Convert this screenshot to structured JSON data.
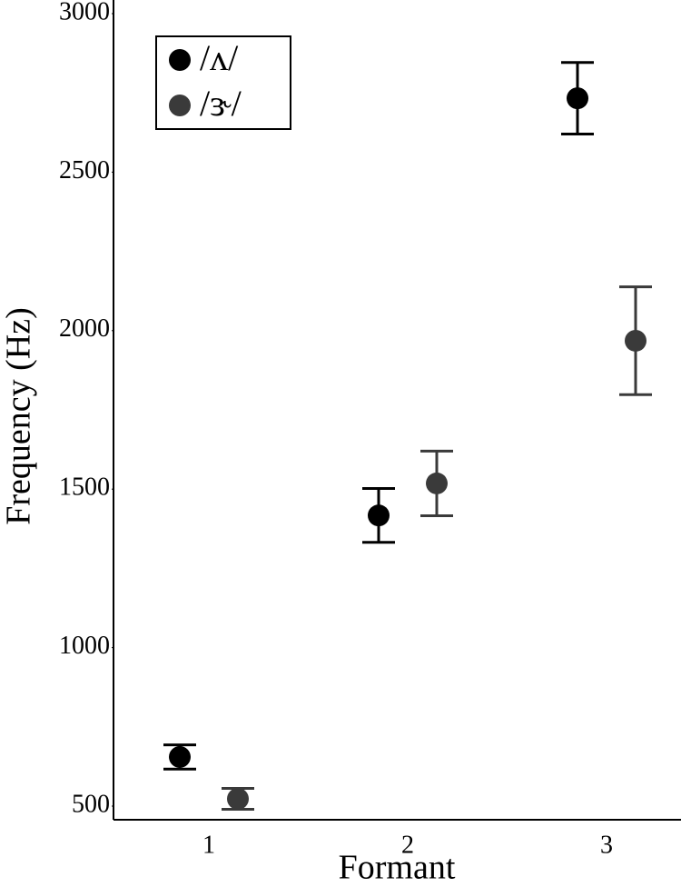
{
  "chart_data": {
    "type": "dot-errorbar",
    "x_label": "Formant",
    "y_label": "Frequency (Hz)",
    "categories": [
      "1",
      "2",
      "3"
    ],
    "series": [
      {
        "name": "/ʌ/",
        "color": "#000000",
        "values": [
          655,
          1417,
          2733
        ],
        "errors": [
          38,
          85,
          113
        ]
      },
      {
        "name": "/ɝ/",
        "color": "#3a3a3a",
        "values": [
          523,
          1518,
          1968
        ],
        "errors": [
          33,
          102,
          170
        ]
      }
    ],
    "ylim": [
      457,
      3043
    ],
    "yticks": [
      500,
      1000,
      1500,
      2000,
      2500,
      3000
    ],
    "legend": "upper-left"
  }
}
